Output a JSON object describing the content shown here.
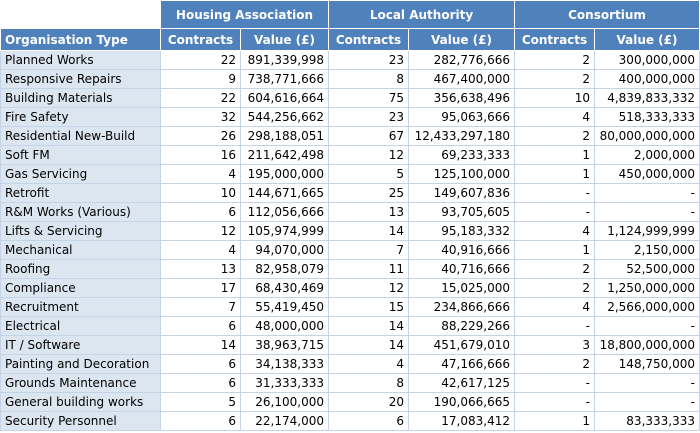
{
  "groups": [
    "Housing Association",
    "Local Authority",
    "Consortium"
  ],
  "column_headers": {
    "org_type": "Organisation Type",
    "contracts": "Contracts",
    "value": "Value (£)"
  },
  "rows": [
    {
      "org": "Planned Works",
      "ha_c": "22",
      "ha_v": "891,339,998",
      "la_c": "23",
      "la_v": "282,776,666",
      "co_c": "2",
      "co_v": "300,000,000"
    },
    {
      "org": "Responsive Repairs",
      "ha_c": "9",
      "ha_v": "738,771,666",
      "la_c": "8",
      "la_v": "467,400,000",
      "co_c": "2",
      "co_v": "400,000,000"
    },
    {
      "org": "Building Materials",
      "ha_c": "22",
      "ha_v": "604,616,664",
      "la_c": "75",
      "la_v": "356,638,496",
      "co_c": "10",
      "co_v": "4,839,833,332"
    },
    {
      "org": "Fire Safety",
      "ha_c": "32",
      "ha_v": "544,256,662",
      "la_c": "23",
      "la_v": "95,063,666",
      "co_c": "4",
      "co_v": "518,333,333"
    },
    {
      "org": "Residential New-Build",
      "ha_c": "26",
      "ha_v": "298,188,051",
      "la_c": "67",
      "la_v": "12,433,297,180",
      "co_c": "2",
      "co_v": "80,000,000,000"
    },
    {
      "org": "Soft FM",
      "ha_c": "16",
      "ha_v": "211,642,498",
      "la_c": "12",
      "la_v": "69,233,333",
      "co_c": "1",
      "co_v": "2,000,000"
    },
    {
      "org": "Gas Servicing",
      "ha_c": "4",
      "ha_v": "195,000,000",
      "la_c": "5",
      "la_v": "125,100,000",
      "co_c": "1",
      "co_v": "450,000,000"
    },
    {
      "org": "Retrofit",
      "ha_c": "10",
      "ha_v": "144,671,665",
      "la_c": "25",
      "la_v": "149,607,836",
      "co_c": "-",
      "co_v": "-"
    },
    {
      "org": "R&M Works (Various)",
      "ha_c": "6",
      "ha_v": "112,056,666",
      "la_c": "13",
      "la_v": "93,705,605",
      "co_c": "-",
      "co_v": "-"
    },
    {
      "org": "Lifts & Servicing",
      "ha_c": "12",
      "ha_v": "105,974,999",
      "la_c": "14",
      "la_v": "95,183,332",
      "co_c": "4",
      "co_v": "1,124,999,999"
    },
    {
      "org": "Mechanical",
      "ha_c": "4",
      "ha_v": "94,070,000",
      "la_c": "7",
      "la_v": "40,916,666",
      "co_c": "1",
      "co_v": "2,150,000"
    },
    {
      "org": "Roofing",
      "ha_c": "13",
      "ha_v": "82,958,079",
      "la_c": "11",
      "la_v": "40,716,666",
      "co_c": "2",
      "co_v": "52,500,000"
    },
    {
      "org": "Compliance",
      "ha_c": "17",
      "ha_v": "68,430,469",
      "la_c": "12",
      "la_v": "15,025,000",
      "co_c": "2",
      "co_v": "1,250,000,000"
    },
    {
      "org": "Recruitment",
      "ha_c": "7",
      "ha_v": "55,419,450",
      "la_c": "15",
      "la_v": "234,866,666",
      "co_c": "4",
      "co_v": "2,566,000,000"
    },
    {
      "org": "Electrical",
      "ha_c": "6",
      "ha_v": "48,000,000",
      "la_c": "14",
      "la_v": "88,229,266",
      "co_c": "-",
      "co_v": "-"
    },
    {
      "org": "IT / Software",
      "ha_c": "14",
      "ha_v": "38,963,715",
      "la_c": "14",
      "la_v": "451,679,010",
      "co_c": "3",
      "co_v": "18,800,000,000"
    },
    {
      "org": "Painting and Decoration",
      "ha_c": "6",
      "ha_v": "34,138,333",
      "la_c": "4",
      "la_v": "47,166,666",
      "co_c": "2",
      "co_v": "148,750,000"
    },
    {
      "org": "Grounds Maintenance",
      "ha_c": "6",
      "ha_v": "31,333,333",
      "la_c": "8",
      "la_v": "42,617,125",
      "co_c": "-",
      "co_v": "-"
    },
    {
      "org": "General building works",
      "ha_c": "5",
      "ha_v": "26,100,000",
      "la_c": "20",
      "la_v": "190,066,665",
      "co_c": "-",
      "co_v": "-"
    },
    {
      "org": "Security Personnel",
      "ha_c": "6",
      "ha_v": "22,174,000",
      "la_c": "6",
      "la_v": "17,083,412",
      "co_c": "1",
      "co_v": "83,333,333"
    }
  ]
}
